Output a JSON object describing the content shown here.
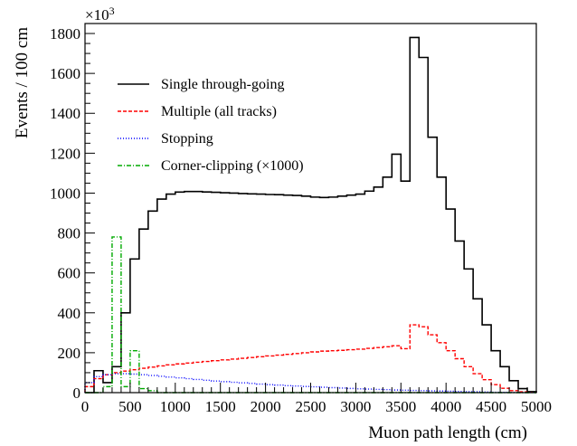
{
  "chart_data": {
    "type": "histogram-step",
    "xlabel": "Muon path length (cm)",
    "ylabel": "Events / 100 cm",
    "y_multiplier_label": "×10³",
    "xlim": [
      0,
      5000
    ],
    "ylim": [
      0,
      1850
    ],
    "x_ticks": [
      0,
      500,
      1000,
      1500,
      2000,
      2500,
      3000,
      3500,
      4000,
      4500,
      5000
    ],
    "x_tick_labels": [
      "0",
      "500",
      "1000",
      "1500",
      "2000",
      "2500",
      "3000",
      "3500",
      "4000",
      "4500",
      "5000"
    ],
    "y_ticks": [
      0,
      200,
      400,
      600,
      800,
      1000,
      1200,
      1400,
      1600,
      1800
    ],
    "y_tick_labels": [
      "0",
      "200",
      "400",
      "600",
      "800",
      "1000",
      "1200",
      "1400",
      "1600",
      "1800"
    ],
    "bin_edges": [
      0,
      100,
      200,
      300,
      400,
      500,
      600,
      700,
      800,
      900,
      1000,
      1100,
      1200,
      1300,
      1400,
      1500,
      1600,
      1700,
      1800,
      1900,
      2000,
      2100,
      2200,
      2300,
      2400,
      2500,
      2600,
      2700,
      2800,
      2900,
      3000,
      3100,
      3200,
      3300,
      3400,
      3500,
      3600,
      3700,
      3800,
      3900,
      4000,
      4100,
      4200,
      4300,
      4400,
      4500,
      4600,
      4700,
      4800,
      4900,
      5000
    ],
    "grid": false,
    "legend_position": "top-left",
    "series": [
      {
        "name": "Single through-going",
        "color": "#000000",
        "dash": "solid",
        "values": [
          0,
          110,
          50,
          130,
          400,
          670,
          820,
          910,
          970,
          995,
          1005,
          1008,
          1008,
          1006,
          1004,
          1002,
          1000,
          998,
          996,
          995,
          993,
          992,
          990,
          988,
          985,
          980,
          978,
          980,
          985,
          990,
          995,
          1010,
          1030,
          1080,
          1195,
          1060,
          1780,
          1680,
          1280,
          1080,
          920,
          760,
          620,
          470,
          340,
          210,
          130,
          60,
          20,
          5
        ]
      },
      {
        "name": "Multiple (all tracks)",
        "color": "#ff0000",
        "dash": "dashed",
        "values": [
          30,
          70,
          90,
          100,
          108,
          115,
          122,
          128,
          134,
          139,
          144,
          148,
          152,
          156,
          160,
          164,
          168,
          172,
          176,
          180,
          184,
          188,
          192,
          196,
          200,
          204,
          208,
          210,
          212,
          215,
          218,
          222,
          226,
          230,
          235,
          220,
          340,
          330,
          290,
          250,
          210,
          170,
          130,
          95,
          65,
          40,
          22,
          10,
          4,
          1
        ]
      },
      {
        "name": "Stopping",
        "color": "#0000ff",
        "dash": "dotted",
        "values": [
          50,
          80,
          90,
          95,
          95,
          93,
          90,
          86,
          82,
          78,
          74,
          70,
          66,
          62,
          58,
          55,
          52,
          49,
          46,
          43,
          40,
          38,
          35,
          33,
          31,
          29,
          27,
          25,
          23,
          21,
          19,
          18,
          16,
          15,
          13,
          12,
          11,
          10,
          9,
          8,
          7,
          6,
          5,
          4,
          3,
          2,
          1.5,
          1,
          0.5,
          0.2
        ]
      },
      {
        "name": "Corner-clipping (×1000)",
        "color": "#00aa00",
        "dash": "dash-dot",
        "values": [
          0,
          0,
          30,
          780,
          30,
          210,
          20,
          10,
          0,
          0,
          0,
          0,
          0,
          0,
          0,
          0,
          0,
          0,
          0,
          0,
          0,
          0,
          0,
          0,
          0,
          0,
          0,
          0,
          0,
          0,
          0,
          0,
          0,
          0,
          0,
          0,
          0,
          0,
          0,
          0,
          0,
          0,
          0,
          0,
          0,
          0,
          0,
          0,
          0,
          0
        ]
      }
    ]
  }
}
